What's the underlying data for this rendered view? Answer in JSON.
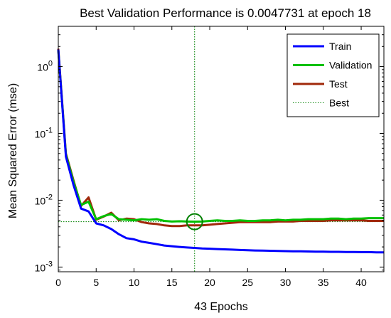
{
  "chart_data": {
    "type": "line",
    "title": "Best Validation Performance is 0.0047731 at epoch 18",
    "xlabel": "43 Epochs",
    "ylabel": "Mean Squared Error  (mse)",
    "xlim": [
      0,
      43
    ],
    "ylim": [
      0.00085,
      4.0
    ],
    "yscale": "log",
    "xticks": [
      "0",
      "5",
      "10",
      "15",
      "20",
      "25",
      "30",
      "35",
      "40"
    ],
    "yticks": [
      {
        "value": 0.001,
        "base": "10",
        "exp": "-3"
      },
      {
        "value": 0.01,
        "base": "10",
        "exp": "-2"
      },
      {
        "value": 0.1,
        "base": "10",
        "exp": "-1"
      },
      {
        "value": 1,
        "base": "10",
        "exp": "0"
      }
    ],
    "legend_position": "top-right",
    "grid": false,
    "series": [
      {
        "name": "Train",
        "color": "#0000ff",
        "x": [
          0,
          1,
          2,
          3,
          4,
          5,
          6,
          7,
          8,
          9,
          10,
          11,
          12,
          13,
          14,
          15,
          16,
          17,
          18,
          19,
          20,
          21,
          22,
          23,
          24,
          25,
          26,
          27,
          28,
          29,
          30,
          31,
          32,
          33,
          34,
          35,
          36,
          37,
          38,
          39,
          40,
          41,
          42,
          43
        ],
        "y": [
          1.8,
          0.045,
          0.017,
          0.0075,
          0.0068,
          0.0045,
          0.0042,
          0.0037,
          0.0031,
          0.0027,
          0.0026,
          0.0024,
          0.0023,
          0.0022,
          0.0021,
          0.00205,
          0.002,
          0.00196,
          0.00193,
          0.0019,
          0.00188,
          0.00186,
          0.00184,
          0.00182,
          0.0018,
          0.00178,
          0.00177,
          0.00176,
          0.00175,
          0.00174,
          0.00173,
          0.00172,
          0.00172,
          0.00171,
          0.0017,
          0.0017,
          0.00169,
          0.00169,
          0.00168,
          0.00168,
          0.00167,
          0.00167,
          0.00166,
          0.00166
        ]
      },
      {
        "name": "Validation",
        "color": "#00c000",
        "x": [
          0,
          1,
          2,
          3,
          4,
          5,
          6,
          7,
          8,
          9,
          10,
          11,
          12,
          13,
          14,
          15,
          16,
          17,
          18,
          19,
          20,
          21,
          22,
          23,
          24,
          25,
          26,
          27,
          28,
          29,
          30,
          31,
          32,
          33,
          34,
          35,
          36,
          37,
          38,
          39,
          40,
          41,
          42,
          43
        ],
        "y": [
          1.75,
          0.048,
          0.019,
          0.0085,
          0.0095,
          0.0052,
          0.0058,
          0.0062,
          0.0052,
          0.0051,
          0.005,
          0.0052,
          0.0051,
          0.0052,
          0.0049,
          0.0048,
          0.00485,
          0.0048,
          0.0047731,
          0.0048,
          0.0049,
          0.005,
          0.0049,
          0.0049,
          0.005,
          0.0049,
          0.0049,
          0.005,
          0.005,
          0.0051,
          0.005,
          0.0051,
          0.0051,
          0.0052,
          0.0052,
          0.0052,
          0.0053,
          0.0053,
          0.0052,
          0.0053,
          0.0053,
          0.0054,
          0.0054,
          0.0054
        ]
      },
      {
        "name": "Test",
        "color": "#a0280a",
        "x": [
          0,
          1,
          2,
          3,
          4,
          5,
          6,
          7,
          8,
          9,
          10,
          11,
          12,
          13,
          14,
          15,
          16,
          17,
          18,
          19,
          20,
          21,
          22,
          23,
          24,
          25,
          26,
          27,
          28,
          29,
          30,
          31,
          32,
          33,
          34,
          35,
          36,
          37,
          38,
          39,
          40,
          41,
          42,
          43
        ],
        "y": [
          1.85,
          0.05,
          0.02,
          0.0082,
          0.011,
          0.0051,
          0.0057,
          0.0065,
          0.005,
          0.0053,
          0.0052,
          0.0047,
          0.0045,
          0.0044,
          0.0042,
          0.0041,
          0.0041,
          0.0042,
          0.0042,
          0.0042,
          0.0043,
          0.0044,
          0.0045,
          0.0046,
          0.0047,
          0.0047,
          0.0047,
          0.0047,
          0.0047,
          0.0048,
          0.0048,
          0.0048,
          0.0049,
          0.0049,
          0.0049,
          0.0049,
          0.005,
          0.005,
          0.005,
          0.005,
          0.005,
          0.0049,
          0.0049,
          0.0049
        ]
      }
    ],
    "best": {
      "name": "Best",
      "color": "#008000",
      "epoch": 18,
      "value": 0.0047731
    }
  }
}
